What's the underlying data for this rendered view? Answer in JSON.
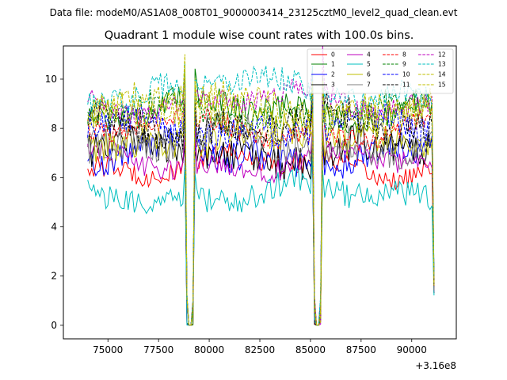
{
  "chart_data": {
    "type": "line",
    "suptitle": "Data file: modeM0/AS1A08_008T01_9000003414_23125cztM0_level2_quad_clean.evt",
    "title": "Quadrant 1 module wise count rates with 100.0s bins.",
    "xlabel": "",
    "ylabel": "",
    "x_offset_label": "+3.16e8",
    "xlim": [
      72800,
      92200
    ],
    "ylim": [
      -0.55,
      11.35
    ],
    "x_ticks": [
      75000,
      77500,
      80000,
      82500,
      85000,
      87500,
      90000
    ],
    "x_tick_labels": [
      "75000",
      "77500",
      "80000",
      "82500",
      "85000",
      "87500",
      "90000"
    ],
    "y_ticks": [
      0,
      2,
      4,
      6,
      8,
      10
    ],
    "y_tick_labels": [
      "0",
      "2",
      "4",
      "6",
      "8",
      "10"
    ],
    "x_start": 74000,
    "x_end": 91100,
    "bin_step": 100,
    "gaps": [
      [
        78850,
        79250
      ],
      [
        85150,
        85550
      ]
    ],
    "legend_position": "upper right",
    "series": [
      {
        "name": "0",
        "color": "#ff0000",
        "dash": "solid",
        "mean": 6.5
      },
      {
        "name": "1",
        "color": "#008000",
        "dash": "solid",
        "mean": 8.8
      },
      {
        "name": "2",
        "color": "#0000ff",
        "dash": "solid",
        "mean": 6.9
      },
      {
        "name": "3",
        "color": "#000000",
        "dash": "solid",
        "mean": 7.0
      },
      {
        "name": "4",
        "color": "#bf00bf",
        "dash": "solid",
        "mean": 6.6
      },
      {
        "name": "5",
        "color": "#00bfbf",
        "dash": "solid",
        "mean": 5.3
      },
      {
        "name": "6",
        "color": "#bfbf00",
        "dash": "solid",
        "mean": 7.6
      },
      {
        "name": "7",
        "color": "#808080",
        "dash": "solid",
        "mean": 7.5
      },
      {
        "name": "8",
        "color": "#ff0000",
        "dash": "dashed",
        "mean": 7.9
      },
      {
        "name": "9",
        "color": "#008000",
        "dash": "dashed",
        "mean": 8.6
      },
      {
        "name": "10",
        "color": "#0000ff",
        "dash": "dashed",
        "mean": 8.0
      },
      {
        "name": "11",
        "color": "#000000",
        "dash": "dashed",
        "mean": 8.2
      },
      {
        "name": "12",
        "color": "#bf00bf",
        "dash": "dashed",
        "mean": 9.1
      },
      {
        "name": "13",
        "color": "#00bfbf",
        "dash": "dashed",
        "mean": 9.6
      },
      {
        "name": "14",
        "color": "#bfbf00",
        "dash": "dashed",
        "mean": 9.0
      },
      {
        "name": "15",
        "color": "#bfbf00",
        "dash": "dashed",
        "mean": 8.4
      }
    ]
  }
}
